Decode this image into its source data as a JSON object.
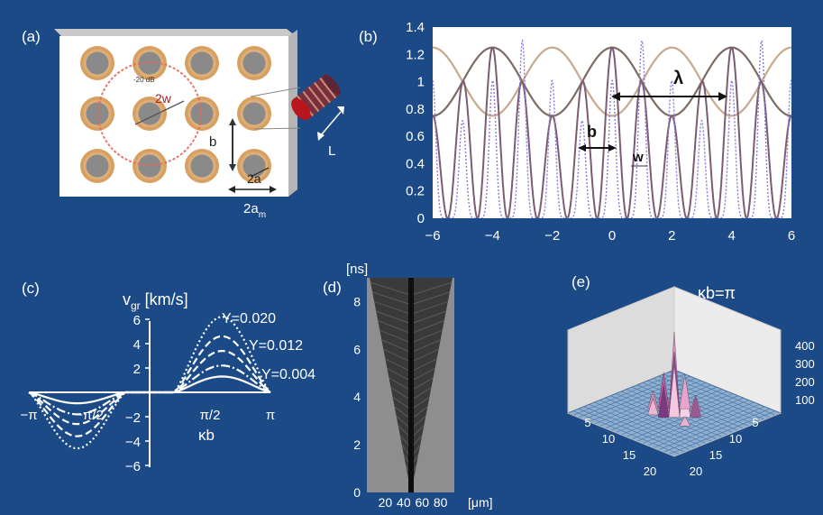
{
  "figure": {
    "background": "#1c4a87",
    "panel_a": {
      "label": "(a)",
      "annotations": {
        "db": "-20 dB",
        "two_w": "2w",
        "b": "b",
        "two_a": "2a",
        "two_am_main": "2a",
        "two_am_sub": "m",
        "L": "L"
      },
      "colors": {
        "ring": "#d8a060",
        "hole": "#8a8a8a",
        "circle": "#e36a5c",
        "fiber": "#b8151c"
      }
    },
    "panel_b": {
      "label": "(b)",
      "annotations": {
        "lambda": "λ",
        "b": "b",
        "w": "w"
      }
    },
    "panel_c": {
      "label": "(c)",
      "ylabel_main": "v",
      "ylabel_sub": "gr",
      "ylabel_unit": " [km/s]",
      "xlabel": "κb",
      "yticks": [
        "6",
        "4",
        "2",
        "−2",
        "−4",
        "−6"
      ],
      "xticks": [
        "−π",
        "−π/2",
        "π/2",
        "π"
      ],
      "curve_labels": [
        "Y=0.020",
        "Y=0.012",
        "Y=0.004"
      ]
    },
    "panel_d": {
      "label": "(d)",
      "yunit": "[ns]",
      "xunit": "[μm]",
      "yticks": [
        "8",
        "6",
        "4",
        "2",
        "0"
      ],
      "xticks": [
        "20",
        "40",
        "60",
        "80"
      ]
    },
    "panel_e": {
      "label": "(e)",
      "title": "κb=π",
      "zticks": [
        "400",
        "300",
        "200",
        "100"
      ],
      "xticks": [
        "5",
        "10",
        "15",
        "20"
      ],
      "yticks": [
        "5",
        "10",
        "15",
        "20"
      ]
    }
  },
  "chart_data": [
    {
      "type": "line",
      "panel": "(b)",
      "xlim": [
        -6,
        6
      ],
      "ylim": [
        0,
        1.4
      ],
      "xticks": [
        "−6",
        "−4",
        "−2",
        "0",
        "2",
        "4",
        "6"
      ],
      "yticks": [
        "0",
        "0.2",
        "0.4",
        "0.6",
        "0.8",
        "1",
        "1.2",
        "1.4"
      ],
      "grid": false,
      "series": [
        {
          "style": "solid",
          "color": "#7d6c64",
          "form": "sine envelope",
          "period": 4,
          "min": 0.75,
          "max": 1.25,
          "peak_at": 0
        },
        {
          "style": "solid",
          "color": "#c6a98e",
          "form": "sine envelope",
          "period": 4,
          "min": 0.75,
          "max": 1.25,
          "peak_at": 2
        },
        {
          "style": "solid",
          "color": "#7c5c72",
          "form": "fast oscillation",
          "period": 1,
          "min": 0,
          "max": 1.25
        },
        {
          "style": "dotted",
          "color": "#8a7ad8",
          "form": "fast oscillation",
          "period": 1,
          "min": 0,
          "max": 1.3
        }
      ]
    },
    {
      "type": "line",
      "panel": "(c)",
      "xlabel": "κb",
      "ylim": [
        -6,
        6
      ],
      "xlim": [
        -3.14,
        3.14
      ],
      "series": [
        {
          "name": "Y=0.020",
          "style": "dotted",
          "peak": 6.2,
          "trough": -4.6
        },
        {
          "style": "dashed",
          "peak": 4.6,
          "trough": -3.6
        },
        {
          "name": "Y=0.012",
          "style": "dashed",
          "peak": 3.4,
          "trough": -2.6
        },
        {
          "style": "dash-dot",
          "peak": 2.2,
          "trough": -1.8
        },
        {
          "name": "Y=0.004",
          "style": "solid",
          "peak": 1.3,
          "trough": -0.9
        }
      ]
    },
    {
      "type": "heatmap",
      "panel": "(d)",
      "xlim": [
        0,
        95
      ],
      "ylim": [
        0,
        9
      ],
      "xlabel": "[μm]",
      "ylabel": "[ns]",
      "center_x": 48,
      "cone_edges_at_top": [
        3,
        93
      ]
    },
    {
      "type": "area",
      "panel": "(e)",
      "title": "κb=π",
      "zlim": [
        0,
        400
      ],
      "xlim": [
        1,
        20
      ],
      "ylim": [
        1,
        20
      ],
      "peak_at": [
        10,
        10
      ],
      "peak_value": 400
    }
  ]
}
